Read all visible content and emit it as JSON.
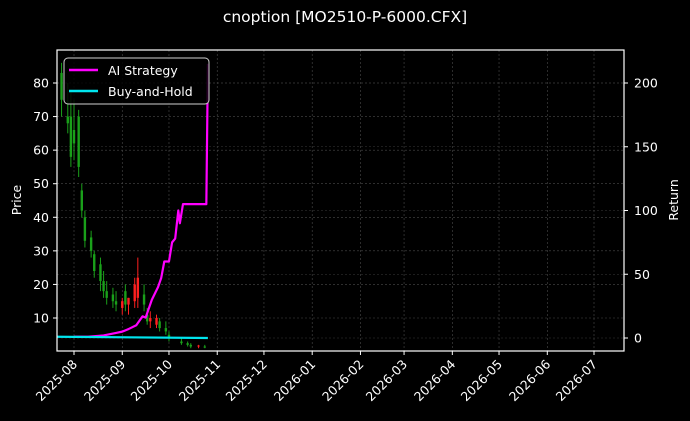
{
  "title": "cnoption [MO2510-P-6000.CFX]",
  "chart_data": {
    "type": "line",
    "title": "cnoption [MO2510-P-6000.CFX]",
    "xlabel": "",
    "ylabel": "Price",
    "y2label": "Return",
    "x_ticks": [
      "2025-08",
      "2025-09",
      "2025-10",
      "2025-11",
      "2025-12",
      "2026-01",
      "2026-02",
      "2026-03",
      "2026-04",
      "2026-05",
      "2026-06",
      "2026-07"
    ],
    "y_ticks": [
      10,
      20,
      30,
      40,
      50,
      60,
      70,
      80
    ],
    "y2_ticks": [
      0,
      50,
      100,
      150,
      200
    ],
    "ylim": [
      1,
      90
    ],
    "y2lim": [
      -10,
      222
    ],
    "grid": true,
    "legend_position": "upper left",
    "legend": [
      "AI Strategy",
      "Buy-and-Hold"
    ],
    "colors": {
      "ai_strategy": "#ff00ff",
      "buy_and_hold": "#00e5ee",
      "up": "#ff2020",
      "down": "#1aa01a",
      "background": "#000000",
      "grid": "#444444"
    },
    "candlesticks": {
      "description": "Daily OHLC candles, green = down, red = up",
      "dates": [
        "2025-07-24",
        "2025-07-28",
        "2025-07-30",
        "2025-08-01",
        "2025-08-04",
        "2025-08-06",
        "2025-08-08",
        "2025-08-12",
        "2025-08-14",
        "2025-08-18",
        "2025-08-20",
        "2025-08-22",
        "2025-08-26",
        "2025-08-28",
        "2025-09-01",
        "2025-09-03",
        "2025-09-05",
        "2025-09-09",
        "2025-09-11",
        "2025-09-15",
        "2025-09-17",
        "2025-09-19",
        "2025-09-23",
        "2025-09-25",
        "2025-09-29",
        "2025-10-01",
        "2025-10-09",
        "2025-10-13",
        "2025-10-15",
        "2025-10-20",
        "2025-10-24"
      ],
      "high": [
        86,
        80,
        78,
        75,
        72,
        50,
        42,
        36,
        30,
        28,
        24,
        21,
        19,
        18,
        16,
        20,
        16,
        22,
        28,
        20,
        13,
        12,
        11,
        10,
        9,
        6,
        4,
        3,
        2.5,
        2,
        2
      ],
      "low": [
        70,
        65,
        55,
        57,
        52,
        40,
        31,
        28,
        22,
        18,
        16,
        14,
        13,
        12,
        11,
        12,
        11,
        13,
        13,
        12,
        8,
        7,
        7,
        6,
        5,
        3,
        2,
        1.5,
        1,
        1,
        1
      ],
      "open": [
        83,
        70,
        70,
        66,
        70,
        48,
        40,
        34,
        29,
        26,
        21,
        18,
        17,
        15,
        13,
        18,
        14,
        15,
        16,
        17,
        11,
        9,
        8,
        9,
        7,
        5,
        3,
        2.5,
        2,
        1.5,
        1.5
      ],
      "close": [
        75,
        68,
        58,
        62,
        55,
        42,
        33,
        30,
        24,
        21,
        18,
        16,
        15,
        14,
        15,
        14,
        16,
        20,
        22,
        14,
        9,
        10,
        10,
        7,
        6,
        4,
        2.5,
        2,
        1.5,
        1.8,
        1.2
      ]
    },
    "series": [
      {
        "name": "AI Strategy",
        "axis": "right",
        "x": [
          "2025-08-01",
          "2025-08-10",
          "2025-08-20",
          "2025-08-28",
          "2025-09-01",
          "2025-09-05",
          "2025-09-10",
          "2025-09-14",
          "2025-09-16",
          "2025-09-18",
          "2025-09-20",
          "2025-09-22",
          "2025-09-24",
          "2025-09-26",
          "2025-09-28",
          "2025-10-01",
          "2025-10-03",
          "2025-10-05",
          "2025-10-07",
          "2025-10-08",
          "2025-10-10",
          "2025-10-25",
          "2025-10-26"
        ],
        "values": [
          1,
          1,
          2,
          4,
          5,
          7,
          10,
          17,
          16,
          23,
          30,
          35,
          40,
          47,
          60,
          60,
          75,
          78,
          100,
          90,
          105,
          105,
          215
        ]
      },
      {
        "name": "Buy-and-Hold",
        "axis": "right",
        "x": [
          "2025-07-24",
          "2025-10-26"
        ],
        "values": [
          1,
          0
        ]
      }
    ]
  }
}
